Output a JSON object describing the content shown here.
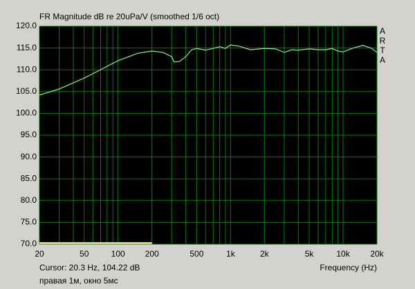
{
  "chart_data": {
    "type": "line",
    "title": "FR Magnitude dB re 20uPa/V (smoothed 1/6 oct)",
    "brand": "ARTA",
    "cursor_text": "Cursor: 20.3 Hz, 104.22 dB",
    "note": "правая 1м, окно 5мс",
    "x_label": "Frequency (Hz)",
    "x_log": true,
    "grid": true,
    "background": "#000000",
    "grid_color": "#0b7a0b",
    "xlim": [
      20,
      20000
    ],
    "ylim": [
      70,
      120
    ],
    "xticks": [
      20,
      50,
      100,
      200,
      500,
      {
        "value": 1000,
        "label": "1k"
      },
      {
        "value": 2000,
        "label": "2k"
      },
      {
        "value": 5000,
        "label": "5k"
      },
      {
        "value": 10000,
        "label": "10k"
      },
      {
        "value": 20000,
        "label": "20k"
      }
    ],
    "xminorticks": [
      30,
      40,
      60,
      70,
      80,
      90,
      300,
      400,
      600,
      700,
      800,
      900,
      3000,
      4000,
      6000,
      7000,
      8000,
      9000
    ],
    "yticks": [
      {
        "value": 70,
        "label": "70.0"
      },
      {
        "value": 75,
        "label": "75.0"
      },
      {
        "value": 80,
        "label": "80.0"
      },
      {
        "value": 85,
        "label": "85.0"
      },
      {
        "value": 90,
        "label": "90.0"
      },
      {
        "value": 95,
        "label": "95.0"
      },
      {
        "value": 100,
        "label": "100.0"
      },
      {
        "value": 105,
        "label": "105.0"
      },
      {
        "value": 110,
        "label": "110.0"
      },
      {
        "value": 115,
        "label": "115.0"
      },
      {
        "value": 120,
        "label": "120.0"
      }
    ],
    "range_marker": [
      20,
      200
    ],
    "range_color": "#d9cf80",
    "x": [
      20,
      30,
      50,
      100,
      150,
      200,
      250,
      300,
      315,
      350,
      400,
      450,
      500,
      600,
      700,
      800,
      900,
      1000,
      1200,
      1500,
      2000,
      2500,
      3000,
      3500,
      4000,
      5000,
      6000,
      7000,
      8000,
      9000,
      10000,
      12000,
      15000,
      18000,
      20000
    ],
    "series": [
      {
        "color": "#86f586",
        "values": [
          104.2,
          105.6,
          108.1,
          112.1,
          113.8,
          114.3,
          114.0,
          113.0,
          111.8,
          111.9,
          113.0,
          114.6,
          114.9,
          114.5,
          114.9,
          115.3,
          114.9,
          115.7,
          115.4,
          114.6,
          114.9,
          114.8,
          114.0,
          114.6,
          114.5,
          114.8,
          114.6,
          114.6,
          114.9,
          114.3,
          114.1,
          114.9,
          115.6,
          114.9,
          114.0
        ]
      }
    ]
  }
}
